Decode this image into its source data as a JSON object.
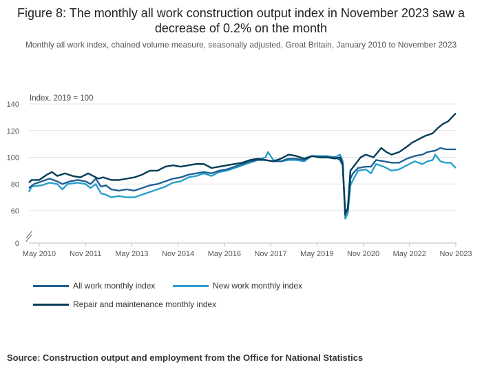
{
  "title": "Figure 8: The monthly all work construction output index in November 2023 saw a decrease of 0.2% on the month",
  "subtitle": "Monthly all work index, chained volume measure, seasonally adjusted, Great Britain, January 2010 to November 2023",
  "source": "Source: Construction output and employment from the Office for National Statistics",
  "chart_data": {
    "type": "line",
    "ylabel": "Index, 2019 = 100",
    "xlabel": "",
    "ylim": [
      0,
      140
    ],
    "y_ticks": [
      0,
      60,
      80,
      100,
      120,
      140
    ],
    "axis_break": true,
    "grid": true,
    "legend_position": "bottom",
    "x_tick_labels": [
      "May 2010",
      "Nov 2011",
      "May 2013",
      "Nov 2014",
      "May 2016",
      "Nov 2017",
      "May 2019",
      "Nov 2020",
      "May 2022",
      "Nov 2023"
    ],
    "x_tick_dates": [
      "2010-05",
      "2011-11",
      "2013-05",
      "2014-11",
      "2016-05",
      "2017-11",
      "2019-05",
      "2020-11",
      "2022-05",
      "2023-11"
    ],
    "x_start": "2010-01",
    "x_end": "2023-11",
    "series": [
      {
        "name": "All work monthly index",
        "color": "#206095",
        "points": [
          [
            "2010-01",
            77
          ],
          [
            "2010-03",
            80
          ],
          [
            "2010-06",
            82
          ],
          [
            "2010-09",
            84
          ],
          [
            "2010-12",
            82
          ],
          [
            "2011-02",
            80
          ],
          [
            "2011-05",
            82
          ],
          [
            "2011-08",
            83
          ],
          [
            "2011-11",
            82
          ],
          [
            "2012-01",
            80
          ],
          [
            "2012-03",
            84
          ],
          [
            "2012-05",
            78
          ],
          [
            "2012-07",
            79
          ],
          [
            "2012-09",
            76
          ],
          [
            "2012-12",
            75
          ],
          [
            "2013-03",
            76
          ],
          [
            "2013-06",
            75
          ],
          [
            "2013-09",
            77
          ],
          [
            "2013-12",
            79
          ],
          [
            "2014-03",
            80
          ],
          [
            "2014-06",
            82
          ],
          [
            "2014-09",
            84
          ],
          [
            "2014-12",
            85
          ],
          [
            "2015-03",
            87
          ],
          [
            "2015-06",
            88
          ],
          [
            "2015-09",
            89
          ],
          [
            "2015-12",
            88
          ],
          [
            "2016-03",
            90
          ],
          [
            "2016-06",
            91
          ],
          [
            "2016-09",
            93
          ],
          [
            "2016-12",
            95
          ],
          [
            "2017-03",
            97
          ],
          [
            "2017-06",
            98
          ],
          [
            "2017-09",
            98
          ],
          [
            "2017-12",
            97
          ],
          [
            "2018-03",
            97
          ],
          [
            "2018-06",
            99
          ],
          [
            "2018-09",
            99
          ],
          [
            "2018-12",
            98
          ],
          [
            "2019-03",
            101
          ],
          [
            "2019-06",
            100
          ],
          [
            "2019-09",
            100
          ],
          [
            "2019-12",
            100
          ],
          [
            "2020-02",
            98
          ],
          [
            "2020-03",
            94
          ],
          [
            "2020-04",
            58
          ],
          [
            "2020-05",
            61
          ],
          [
            "2020-06",
            84
          ],
          [
            "2020-07",
            88
          ],
          [
            "2020-09",
            92
          ],
          [
            "2020-12",
            93
          ],
          [
            "2021-02",
            93
          ],
          [
            "2021-04",
            98
          ],
          [
            "2021-07",
            97
          ],
          [
            "2021-10",
            96
          ],
          [
            "2022-01",
            96
          ],
          [
            "2022-04",
            99
          ],
          [
            "2022-07",
            101
          ],
          [
            "2022-10",
            102
          ],
          [
            "2022-12",
            104
          ],
          [
            "2023-03",
            105
          ],
          [
            "2023-05",
            107
          ],
          [
            "2023-07",
            106
          ],
          [
            "2023-09",
            106
          ],
          [
            "2023-11",
            106
          ]
        ]
      },
      {
        "name": "New work monthly index",
        "color": "#27a0cc",
        "points": [
          [
            "2010-01",
            74
          ],
          [
            "2010-02",
            78
          ],
          [
            "2010-06",
            79
          ],
          [
            "2010-09",
            81
          ],
          [
            "2010-12",
            80
          ],
          [
            "2011-02",
            76
          ],
          [
            "2011-04",
            80
          ],
          [
            "2011-08",
            81
          ],
          [
            "2011-11",
            80
          ],
          [
            "2012-01",
            77
          ],
          [
            "2012-03",
            80
          ],
          [
            "2012-05",
            73
          ],
          [
            "2012-07",
            72
          ],
          [
            "2012-09",
            70
          ],
          [
            "2012-12",
            71
          ],
          [
            "2013-03",
            70
          ],
          [
            "2013-06",
            70
          ],
          [
            "2013-09",
            72
          ],
          [
            "2013-12",
            74
          ],
          [
            "2014-03",
            76
          ],
          [
            "2014-06",
            78
          ],
          [
            "2014-09",
            81
          ],
          [
            "2014-12",
            82
          ],
          [
            "2015-03",
            85
          ],
          [
            "2015-06",
            86
          ],
          [
            "2015-09",
            88
          ],
          [
            "2015-12",
            86
          ],
          [
            "2016-03",
            89
          ],
          [
            "2016-06",
            90
          ],
          [
            "2016-09",
            92
          ],
          [
            "2016-12",
            94
          ],
          [
            "2017-03",
            96
          ],
          [
            "2017-06",
            98
          ],
          [
            "2017-09",
            100
          ],
          [
            "2017-10",
            104
          ],
          [
            "2017-12",
            98
          ],
          [
            "2018-03",
            97
          ],
          [
            "2018-06",
            98
          ],
          [
            "2018-09",
            98
          ],
          [
            "2018-12",
            97
          ],
          [
            "2019-03",
            101
          ],
          [
            "2019-06",
            101
          ],
          [
            "2019-09",
            101
          ],
          [
            "2019-12",
            100
          ],
          [
            "2020-02",
            102
          ],
          [
            "2020-03",
            97
          ],
          [
            "2020-04",
            54
          ],
          [
            "2020-05",
            58
          ],
          [
            "2020-06",
            79
          ],
          [
            "2020-07",
            83
          ],
          [
            "2020-09",
            90
          ],
          [
            "2020-12",
            91
          ],
          [
            "2021-02",
            88
          ],
          [
            "2021-04",
            95
          ],
          [
            "2021-07",
            93
          ],
          [
            "2021-10",
            90
          ],
          [
            "2022-01",
            91
          ],
          [
            "2022-04",
            94
          ],
          [
            "2022-07",
            97
          ],
          [
            "2022-10",
            95
          ],
          [
            "2022-12",
            97
          ],
          [
            "2023-02",
            98
          ],
          [
            "2023-03",
            102
          ],
          [
            "2023-05",
            97
          ],
          [
            "2023-07",
            96
          ],
          [
            "2023-09",
            96
          ],
          [
            "2023-11",
            92
          ]
        ]
      },
      {
        "name": "Repair and maintenance monthly index",
        "color": "#003c57",
        "points": [
          [
            "2010-01",
            81
          ],
          [
            "2010-02",
            83
          ],
          [
            "2010-05",
            83
          ],
          [
            "2010-08",
            87
          ],
          [
            "2010-10",
            89
          ],
          [
            "2010-12",
            86
          ],
          [
            "2011-03",
            88
          ],
          [
            "2011-06",
            86
          ],
          [
            "2011-09",
            85
          ],
          [
            "2011-12",
            88
          ],
          [
            "2012-02",
            86
          ],
          [
            "2012-04",
            84
          ],
          [
            "2012-06",
            85
          ],
          [
            "2012-09",
            83
          ],
          [
            "2012-12",
            83
          ],
          [
            "2013-03",
            84
          ],
          [
            "2013-06",
            85
          ],
          [
            "2013-09",
            87
          ],
          [
            "2013-12",
            90
          ],
          [
            "2014-03",
            90
          ],
          [
            "2014-06",
            93
          ],
          [
            "2014-09",
            94
          ],
          [
            "2014-12",
            93
          ],
          [
            "2015-03",
            94
          ],
          [
            "2015-06",
            95
          ],
          [
            "2015-09",
            95
          ],
          [
            "2015-12",
            92
          ],
          [
            "2016-03",
            93
          ],
          [
            "2016-06",
            94
          ],
          [
            "2016-09",
            95
          ],
          [
            "2016-12",
            96
          ],
          [
            "2017-03",
            98
          ],
          [
            "2017-06",
            99
          ],
          [
            "2017-09",
            98
          ],
          [
            "2017-12",
            97
          ],
          [
            "2018-03",
            99
          ],
          [
            "2018-06",
            102
          ],
          [
            "2018-09",
            101
          ],
          [
            "2018-12",
            99
          ],
          [
            "2019-03",
            101
          ],
          [
            "2019-06",
            100
          ],
          [
            "2019-09",
            100
          ],
          [
            "2019-12",
            99
          ],
          [
            "2020-02",
            100
          ],
          [
            "2020-03",
            95
          ],
          [
            "2020-04",
            57
          ],
          [
            "2020-05",
            62
          ],
          [
            "2020-06",
            90
          ],
          [
            "2020-08",
            95
          ],
          [
            "2020-10",
            100
          ],
          [
            "2020-12",
            102
          ],
          [
            "2021-03",
            100
          ],
          [
            "2021-06",
            107
          ],
          [
            "2021-08",
            104
          ],
          [
            "2021-10",
            102
          ],
          [
            "2022-01",
            104
          ],
          [
            "2022-04",
            108
          ],
          [
            "2022-06",
            111
          ],
          [
            "2022-08",
            113
          ],
          [
            "2022-11",
            116
          ],
          [
            "2023-02",
            118
          ],
          [
            "2023-04",
            122
          ],
          [
            "2023-06",
            125
          ],
          [
            "2023-08",
            127
          ],
          [
            "2023-11",
            133
          ]
        ]
      }
    ]
  }
}
